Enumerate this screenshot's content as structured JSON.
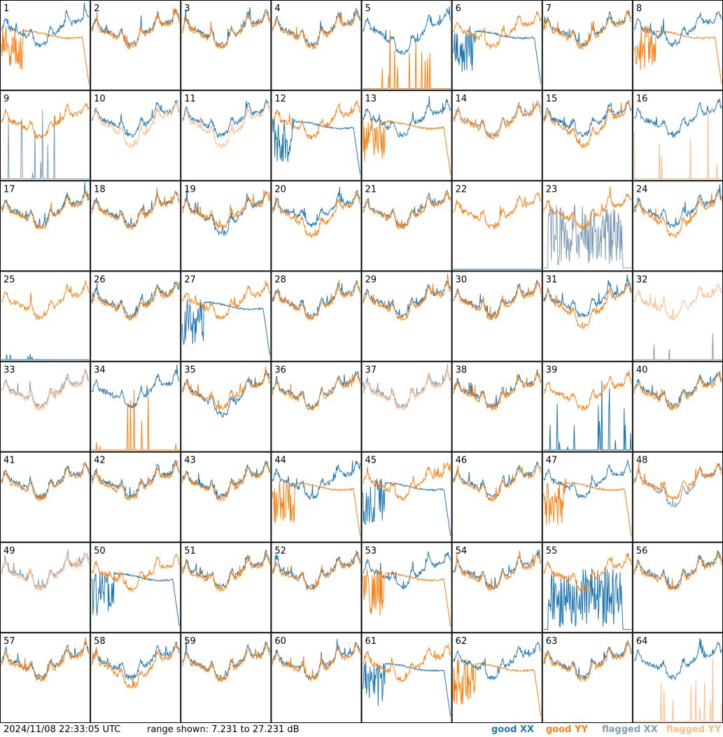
{
  "footer": {
    "timestamp": "2024/11/08 22:33:05 UTC",
    "range_text": "range shown: 7.231 to 27.231 dB"
  },
  "legend": [
    {
      "label": "good XX",
      "color": "#1f77b4"
    },
    {
      "label": "good YY",
      "color": "#ff7f0e"
    },
    {
      "label": "flagged XX",
      "color": "#7f9db9"
    },
    {
      "label": "flagged YY",
      "color": "#ffbb88"
    }
  ],
  "chart_data": {
    "type": "line",
    "layout": "small-multiples 8x8",
    "ylim": [
      7.231,
      27.231
    ],
    "yunit": "dB",
    "series_names": [
      "good XX",
      "good YY",
      "flagged XX",
      "flagged YY"
    ],
    "panels": [
      {
        "id": "1",
        "xx": "good",
        "yy": "good",
        "xx_shape": "normal",
        "yy_shape": "cliff"
      },
      {
        "id": "2",
        "xx": "good",
        "yy": "good",
        "xx_shape": "normal",
        "yy_shape": "normal"
      },
      {
        "id": "3",
        "xx": "good",
        "yy": "good",
        "xx_shape": "normal",
        "yy_shape": "normal"
      },
      {
        "id": "4",
        "xx": "good",
        "yy": "good",
        "xx_shape": "normal",
        "yy_shape": "normal"
      },
      {
        "id": "5",
        "xx": "good",
        "yy": "good",
        "xx_shape": "low",
        "yy_shape": "spikes"
      },
      {
        "id": "6",
        "xx": "good",
        "yy": "good",
        "xx_shape": "cliff",
        "yy_shape": "normal"
      },
      {
        "id": "7",
        "xx": "good",
        "yy": "good",
        "xx_shape": "normal",
        "yy_shape": "normal"
      },
      {
        "id": "8",
        "xx": "good",
        "yy": "good",
        "xx_shape": "normal",
        "yy_shape": "cliff"
      },
      {
        "id": "9",
        "xx": "flagged",
        "yy": "good",
        "xx_shape": "spikes",
        "yy_shape": "normal"
      },
      {
        "id": "10",
        "xx": "good",
        "yy": "flagged",
        "xx_shape": "normal",
        "yy_shape": "low"
      },
      {
        "id": "11",
        "xx": "good",
        "yy": "flagged",
        "xx_shape": "normal",
        "yy_shape": "low"
      },
      {
        "id": "12",
        "xx": "good",
        "yy": "good",
        "xx_shape": "cliff",
        "yy_shape": "normal"
      },
      {
        "id": "13",
        "xx": "good",
        "yy": "good",
        "xx_shape": "normal",
        "yy_shape": "cliff"
      },
      {
        "id": "14",
        "xx": "flagged",
        "yy": "good",
        "xx_shape": "normal",
        "yy_shape": "normal"
      },
      {
        "id": "15",
        "xx": "good",
        "yy": "good",
        "xx_shape": "normal",
        "yy_shape": "low"
      },
      {
        "id": "16",
        "xx": "good",
        "yy": "flagged",
        "xx_shape": "normal",
        "yy_shape": "spikes"
      },
      {
        "id": "17",
        "xx": "good",
        "yy": "good",
        "xx_shape": "normal",
        "yy_shape": "normal"
      },
      {
        "id": "18",
        "xx": "good",
        "yy": "good",
        "xx_shape": "normal",
        "yy_shape": "normal"
      },
      {
        "id": "19",
        "xx": "good",
        "yy": "good",
        "xx_shape": "low",
        "yy_shape": "normal"
      },
      {
        "id": "20",
        "xx": "good",
        "yy": "good",
        "xx_shape": "normal",
        "yy_shape": "low"
      },
      {
        "id": "21",
        "xx": "good",
        "yy": "good",
        "xx_shape": "normal",
        "yy_shape": "normal"
      },
      {
        "id": "22",
        "xx": "good",
        "yy": "good",
        "xx_shape": "flat",
        "yy_shape": "normal"
      },
      {
        "id": "23",
        "xx": "flagged",
        "yy": "good",
        "xx_shape": "noisy",
        "yy_shape": "normal"
      },
      {
        "id": "24",
        "xx": "good",
        "yy": "good",
        "xx_shape": "normal",
        "yy_shape": "low"
      },
      {
        "id": "25",
        "xx": "good",
        "yy": "good",
        "xx_shape": "flat",
        "yy_shape": "normal"
      },
      {
        "id": "26",
        "xx": "good",
        "yy": "good",
        "xx_shape": "normal",
        "yy_shape": "normal"
      },
      {
        "id": "27",
        "xx": "good",
        "yy": "good",
        "xx_shape": "cliff",
        "yy_shape": "normal"
      },
      {
        "id": "28",
        "xx": "good",
        "yy": "good",
        "xx_shape": "normal",
        "yy_shape": "normal"
      },
      {
        "id": "29",
        "xx": "good",
        "yy": "good",
        "xx_shape": "normal",
        "yy_shape": "normal"
      },
      {
        "id": "30",
        "xx": "good",
        "yy": "good",
        "xx_shape": "normal",
        "yy_shape": "normal"
      },
      {
        "id": "31",
        "xx": "good",
        "yy": "good",
        "xx_shape": "normal",
        "yy_shape": "low"
      },
      {
        "id": "32",
        "xx": "flagged",
        "yy": "flagged",
        "xx_shape": "spikes",
        "yy_shape": "normal"
      },
      {
        "id": "33",
        "xx": "flagged",
        "yy": "flagged",
        "xx_shape": "normal",
        "yy_shape": "normal"
      },
      {
        "id": "34",
        "xx": "good",
        "yy": "good",
        "xx_shape": "normal",
        "yy_shape": "spikes"
      },
      {
        "id": "35",
        "xx": "good",
        "yy": "good",
        "xx_shape": "low",
        "yy_shape": "normal"
      },
      {
        "id": "36",
        "xx": "good",
        "yy": "good",
        "xx_shape": "normal",
        "yy_shape": "normal"
      },
      {
        "id": "37",
        "xx": "flagged",
        "yy": "flagged",
        "xx_shape": "normal",
        "yy_shape": "normal"
      },
      {
        "id": "38",
        "xx": "good",
        "yy": "good",
        "xx_shape": "normal",
        "yy_shape": "normal"
      },
      {
        "id": "39",
        "xx": "good",
        "yy": "good",
        "xx_shape": "spikes",
        "yy_shape": "normal"
      },
      {
        "id": "40",
        "xx": "good",
        "yy": "good",
        "xx_shape": "normal",
        "yy_shape": "normal"
      },
      {
        "id": "41",
        "xx": "good",
        "yy": "good",
        "xx_shape": "normal",
        "yy_shape": "normal"
      },
      {
        "id": "42",
        "xx": "good",
        "yy": "good",
        "xx_shape": "normal",
        "yy_shape": "normal"
      },
      {
        "id": "43",
        "xx": "good",
        "yy": "good",
        "xx_shape": "normal",
        "yy_shape": "normal"
      },
      {
        "id": "44",
        "xx": "good",
        "yy": "good",
        "xx_shape": "normal",
        "yy_shape": "cliff"
      },
      {
        "id": "45",
        "xx": "good",
        "yy": "good",
        "xx_shape": "cliff",
        "yy_shape": "normal"
      },
      {
        "id": "46",
        "xx": "good",
        "yy": "good",
        "xx_shape": "normal",
        "yy_shape": "normal"
      },
      {
        "id": "47",
        "xx": "good",
        "yy": "good",
        "xx_shape": "normal",
        "yy_shape": "cliff"
      },
      {
        "id": "48",
        "xx": "flagged",
        "yy": "good",
        "xx_shape": "low",
        "yy_shape": "normal"
      },
      {
        "id": "49",
        "xx": "flagged",
        "yy": "flagged",
        "xx_shape": "normal",
        "yy_shape": "normal"
      },
      {
        "id": "50",
        "xx": "good",
        "yy": "good",
        "xx_shape": "cliff",
        "yy_shape": "normal"
      },
      {
        "id": "51",
        "xx": "good",
        "yy": "good",
        "xx_shape": "normal",
        "yy_shape": "normal"
      },
      {
        "id": "52",
        "xx": "good",
        "yy": "good",
        "xx_shape": "normal",
        "yy_shape": "normal"
      },
      {
        "id": "53",
        "xx": "good",
        "yy": "good",
        "xx_shape": "normal",
        "yy_shape": "cliff"
      },
      {
        "id": "54",
        "xx": "good",
        "yy": "good",
        "xx_shape": "normal",
        "yy_shape": "normal"
      },
      {
        "id": "55",
        "xx": "good",
        "yy": "good",
        "xx_shape": "noisy",
        "yy_shape": "normal"
      },
      {
        "id": "56",
        "xx": "good",
        "yy": "good",
        "xx_shape": "normal",
        "yy_shape": "normal"
      },
      {
        "id": "57",
        "xx": "good",
        "yy": "good",
        "xx_shape": "normal",
        "yy_shape": "normal"
      },
      {
        "id": "58",
        "xx": "good",
        "yy": "good",
        "xx_shape": "normal",
        "yy_shape": "low"
      },
      {
        "id": "59",
        "xx": "good",
        "yy": "good",
        "xx_shape": "normal",
        "yy_shape": "normal"
      },
      {
        "id": "60",
        "xx": "good",
        "yy": "good",
        "xx_shape": "normal",
        "yy_shape": "normal"
      },
      {
        "id": "61",
        "xx": "good",
        "yy": "good",
        "xx_shape": "cliff",
        "yy_shape": "normal"
      },
      {
        "id": "62",
        "xx": "good",
        "yy": "good",
        "xx_shape": "normal",
        "yy_shape": "cliff"
      },
      {
        "id": "63",
        "xx": "good",
        "yy": "good",
        "xx_shape": "normal",
        "yy_shape": "normal"
      },
      {
        "id": "64",
        "xx": "good",
        "yy": "flagged",
        "xx_shape": "normal",
        "yy_shape": "spikes"
      }
    ]
  }
}
